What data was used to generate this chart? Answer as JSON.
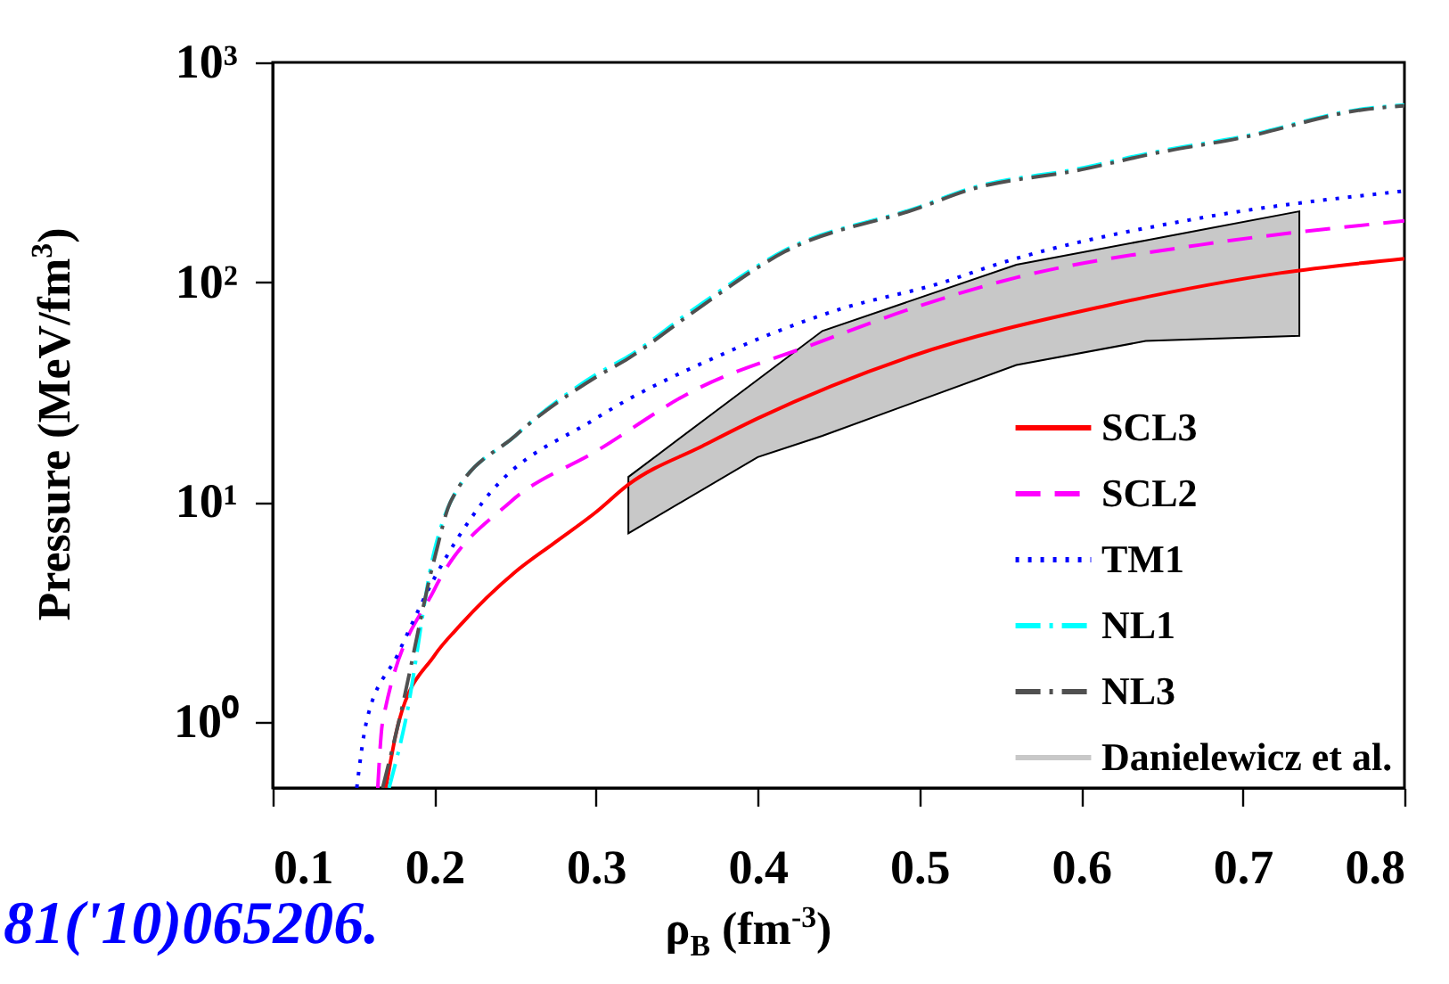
{
  "chart_data": {
    "type": "line",
    "xlabel": "ρ$_{B}$ (fm$^{-3}$)",
    "ylabel": "Pressure (MeV/fm$^{3}$)",
    "annotations": [
      "81('10)065206."
    ],
    "xlim": [
      0.1,
      0.8
    ],
    "xticks": [
      0.1,
      0.2,
      0.3,
      0.4,
      0.5,
      0.6,
      0.7,
      0.8
    ],
    "ylim": [
      0.5,
      1000
    ],
    "yticks": [
      {
        "value": 1,
        "label": "10⁰"
      },
      {
        "value": 10,
        "label": "10¹"
      },
      {
        "value": 100,
        "label": "10²"
      },
      {
        "value": 1000,
        "label": "10³"
      }
    ],
    "log": "y",
    "grid": false,
    "legend": "bottom right",
    "series": [
      {
        "name": "SCL3",
        "color": "#ff0000",
        "line_style": "solid",
        "x": [
          0.17,
          0.178,
          0.2,
          0.216,
          0.25,
          0.274,
          0.3,
          0.32,
          0.366,
          0.4,
          0.495,
          0.615,
          0.723,
          0.8
        ],
        "values": [
          0.5,
          1,
          2,
          2.75,
          4.8,
          6.5,
          9,
          12,
          18,
          24,
          46,
          78,
          110,
          128
        ]
      },
      {
        "name": "SCL2",
        "color": "#ff00ff",
        "line_style": "dashed",
        "x": [
          0.165,
          0.168,
          0.2,
          0.247,
          0.3,
          0.36,
          0.434,
          0.5,
          0.56,
          0.674,
          0.8
        ],
        "values": [
          0.5,
          1,
          4,
          10,
          17,
          32,
          52,
          78,
          105,
          148,
          190
        ]
      },
      {
        "name": "TM1",
        "color": "#0000ff",
        "line_style": "dotted",
        "x": [
          0.152,
          0.158,
          0.177,
          0.2,
          0.23,
          0.3,
          0.381,
          0.45,
          0.515,
          0.547,
          0.674,
          0.8
        ],
        "values": [
          0.5,
          1,
          2,
          4.5,
          10,
          24,
          48,
          75,
          100,
          120,
          196,
          260
        ]
      },
      {
        "name": "NL1",
        "color": "#00ffff",
        "line_style": "dashdot",
        "x": [
          0.172,
          0.182,
          0.2,
          0.21,
          0.25,
          0.3,
          0.32,
          0.36,
          0.417,
          0.5,
          0.53,
          0.6,
          0.645,
          0.7,
          0.775,
          0.8
        ],
        "values": [
          0.5,
          1,
          6,
          10,
          20,
          38,
          46,
          75,
          140,
          220,
          265,
          330,
          390,
          460,
          615,
          640
        ]
      },
      {
        "name": "NL3",
        "color": "#505050",
        "line_style": "dashdot",
        "x": [
          0.168,
          0.178,
          0.2,
          0.21,
          0.25,
          0.3,
          0.32,
          0.36,
          0.417,
          0.5,
          0.53,
          0.6,
          0.645,
          0.7,
          0.775,
          0.8
        ],
        "values": [
          0.5,
          1,
          5.5,
          10,
          20,
          37,
          45,
          73,
          138,
          218,
          262,
          325,
          385,
          455,
          610,
          635
        ]
      },
      {
        "name": "Danielewicz et al.",
        "type": "area",
        "color": "#c8c8c8",
        "x": [
          0.32,
          0.4,
          0.44,
          0.56,
          0.64,
          0.735
        ],
        "values": [
          null,
          null,
          null,
          null,
          null,
          null
        ],
        "lower": [
          7.2,
          16,
          20,
          42,
          54,
          57
        ],
        "upper": [
          13,
          36,
          60,
          120,
          155,
          210
        ]
      }
    ]
  }
}
